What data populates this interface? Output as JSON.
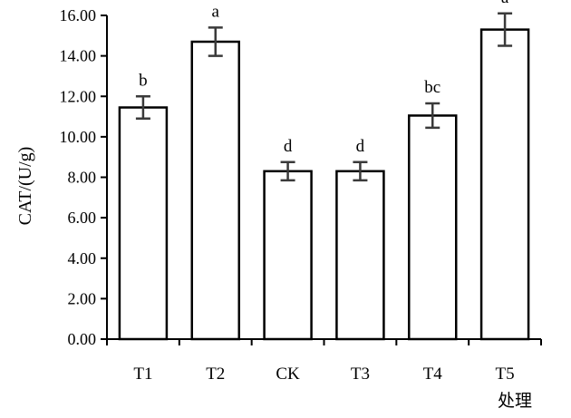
{
  "chart_data": {
    "type": "bar",
    "categories": [
      "T1",
      "T2",
      "CK",
      "T3",
      "T4",
      "T5"
    ],
    "values": [
      11.45,
      14.7,
      8.3,
      8.3,
      11.05,
      15.3
    ],
    "errors": [
      0.55,
      0.7,
      0.45,
      0.45,
      0.6,
      0.8
    ],
    "significance": [
      "b",
      "a",
      "d",
      "d",
      "bc",
      "a"
    ],
    "ylabel": "CAT/(U/g)",
    "xlabel": "处理",
    "ylim": [
      0,
      16
    ],
    "yticks": [
      "0.00",
      "2.00",
      "4.00",
      "6.00",
      "8.00",
      "10.00",
      "12.00",
      "14.00",
      "16.00"
    ],
    "ytick_values": [
      0,
      2,
      4,
      6,
      8,
      10,
      12,
      14,
      16
    ],
    "grid": false,
    "colors": {
      "bar_fill": "#ffffff",
      "bar_stroke": "#000000",
      "error_bar": "#3a3a3a"
    }
  }
}
